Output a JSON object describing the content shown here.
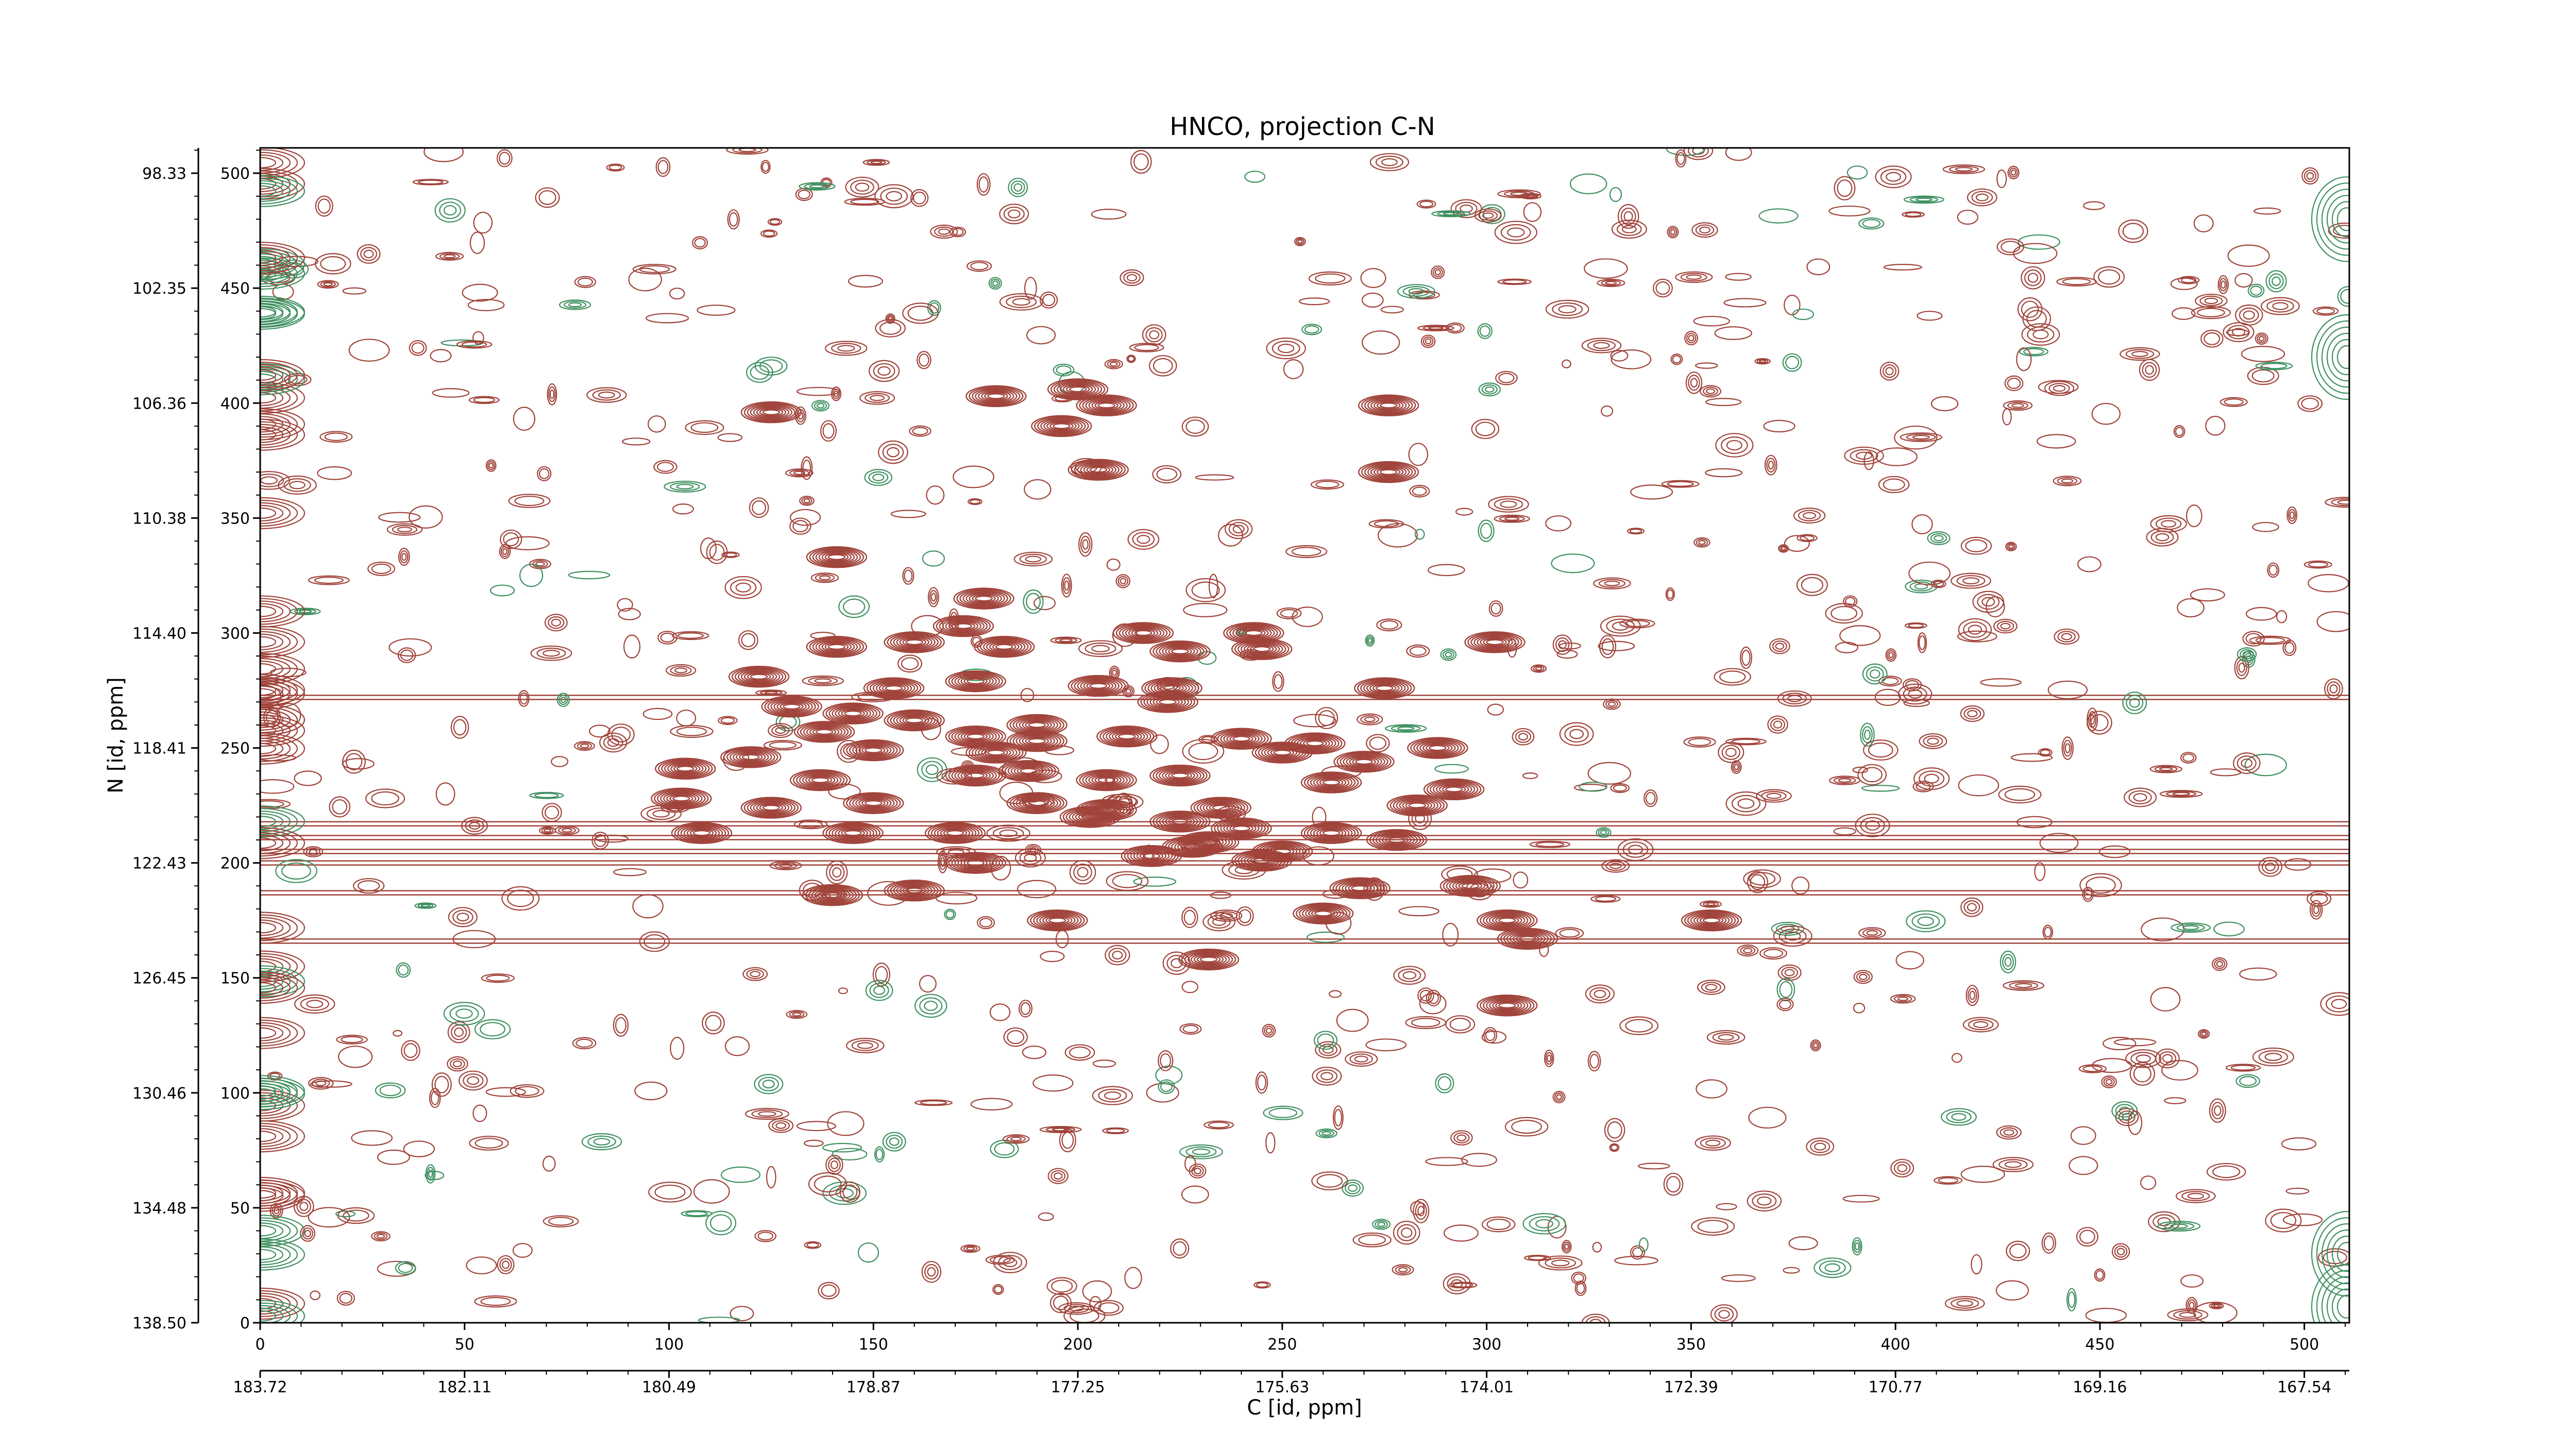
{
  "chart_data": {
    "type": "contour",
    "title": "HNCO, projection C-N",
    "xlabel": "C [id, ppm]",
    "ylabel": "N [id, ppm]",
    "xlim": [
      0,
      511
    ],
    "ylim": [
      0,
      511
    ],
    "x_index_ticks": [
      "0",
      "50",
      "100",
      "150",
      "200",
      "250",
      "300",
      "350",
      "400",
      "450",
      "500"
    ],
    "x_index_tick_values": [
      0,
      50,
      100,
      150,
      200,
      250,
      300,
      350,
      400,
      450,
      500
    ],
    "x_ppm_ticks": [
      "183.72",
      "182.11",
      "180.49",
      "178.87",
      "177.25",
      "175.63",
      "174.01",
      "172.39",
      "170.77",
      "169.16",
      "167.54"
    ],
    "x_ppm_tick_values": [
      0,
      50,
      100,
      150,
      200,
      250,
      300,
      350,
      400,
      450,
      500
    ],
    "y_index_ticks": [
      "0",
      "50",
      "100",
      "150",
      "200",
      "250",
      "300",
      "350",
      "400",
      "450",
      "500"
    ],
    "y_index_tick_values": [
      0,
      50,
      100,
      150,
      200,
      250,
      300,
      350,
      400,
      450,
      500
    ],
    "y_ppm_ticks": [
      "138.50",
      "134.48",
      "130.46",
      "126.45",
      "122.43",
      "118.41",
      "114.40",
      "110.38",
      "106.36",
      "102.35",
      "98.33"
    ],
    "y_ppm_tick_values": [
      0,
      50,
      100,
      150,
      200,
      250,
      300,
      350,
      400,
      450,
      500
    ],
    "colors": {
      "positive": "#a0433a",
      "negative": "#3f9060",
      "axis": "#000000"
    },
    "grid": false,
    "legend": "none",
    "horizontal_ridges": [
      {
        "y": 272,
        "x_range": [
          0,
          511
        ]
      },
      {
        "y": 217,
        "x_range": [
          0,
          511
        ]
      },
      {
        "y": 211,
        "x_range": [
          0,
          511
        ]
      },
      {
        "y": 205,
        "x_range": [
          0,
          511
        ]
      },
      {
        "y": 200,
        "x_range": [
          0,
          511
        ]
      },
      {
        "y": 187,
        "x_range": [
          0,
          511
        ]
      },
      {
        "y": 166,
        "x_range": [
          0,
          511
        ]
      }
    ],
    "peaks": [
      {
        "x": 125,
        "y": 396
      },
      {
        "x": 180,
        "y": 403
      },
      {
        "x": 200,
        "y": 406
      },
      {
        "x": 207,
        "y": 399
      },
      {
        "x": 196,
        "y": 390
      },
      {
        "x": 205,
        "y": 371
      },
      {
        "x": 276,
        "y": 399
      },
      {
        "x": 276,
        "y": 370
      },
      {
        "x": 141,
        "y": 333
      },
      {
        "x": 177,
        "y": 315
      },
      {
        "x": 172,
        "y": 303
      },
      {
        "x": 182,
        "y": 294
      },
      {
        "x": 141,
        "y": 294
      },
      {
        "x": 160,
        "y": 296
      },
      {
        "x": 216,
        "y": 300
      },
      {
        "x": 225,
        "y": 292
      },
      {
        "x": 243,
        "y": 300
      },
      {
        "x": 245,
        "y": 293
      },
      {
        "x": 302,
        "y": 296
      },
      {
        "x": 122,
        "y": 281
      },
      {
        "x": 175,
        "y": 279
      },
      {
        "x": 155,
        "y": 276
      },
      {
        "x": 205,
        "y": 277
      },
      {
        "x": 223,
        "y": 276
      },
      {
        "x": 275,
        "y": 276
      },
      {
        "x": 222,
        "y": 270
      },
      {
        "x": 130,
        "y": 268
      },
      {
        "x": 145,
        "y": 265
      },
      {
        "x": 160,
        "y": 262
      },
      {
        "x": 190,
        "y": 260
      },
      {
        "x": 138,
        "y": 257
      },
      {
        "x": 175,
        "y": 255
      },
      {
        "x": 190,
        "y": 253
      },
      {
        "x": 212,
        "y": 255
      },
      {
        "x": 240,
        "y": 254
      },
      {
        "x": 150,
        "y": 249
      },
      {
        "x": 120,
        "y": 246
      },
      {
        "x": 104,
        "y": 241
      },
      {
        "x": 180,
        "y": 248
      },
      {
        "x": 250,
        "y": 248
      },
      {
        "x": 258,
        "y": 252
      },
      {
        "x": 270,
        "y": 244
      },
      {
        "x": 288,
        "y": 250
      },
      {
        "x": 137,
        "y": 236
      },
      {
        "x": 175,
        "y": 238
      },
      {
        "x": 188,
        "y": 240
      },
      {
        "x": 225,
        "y": 238
      },
      {
        "x": 262,
        "y": 235
      },
      {
        "x": 207,
        "y": 236
      },
      {
        "x": 292,
        "y": 232
      },
      {
        "x": 103,
        "y": 228
      },
      {
        "x": 150,
        "y": 226
      },
      {
        "x": 190,
        "y": 226
      },
      {
        "x": 125,
        "y": 224
      },
      {
        "x": 207,
        "y": 223
      },
      {
        "x": 235,
        "y": 224
      },
      {
        "x": 283,
        "y": 225
      },
      {
        "x": 203,
        "y": 220
      },
      {
        "x": 225,
        "y": 218
      },
      {
        "x": 108,
        "y": 213
      },
      {
        "x": 145,
        "y": 213
      },
      {
        "x": 170,
        "y": 213
      },
      {
        "x": 240,
        "y": 215
      },
      {
        "x": 232,
        "y": 209
      },
      {
        "x": 228,
        "y": 207
      },
      {
        "x": 278,
        "y": 210
      },
      {
        "x": 250,
        "y": 205
      },
      {
        "x": 262,
        "y": 213
      },
      {
        "x": 175,
        "y": 200
      },
      {
        "x": 218,
        "y": 203
      },
      {
        "x": 245,
        "y": 201
      },
      {
        "x": 269,
        "y": 189
      },
      {
        "x": 296,
        "y": 190
      },
      {
        "x": 140,
        "y": 186
      },
      {
        "x": 160,
        "y": 188
      },
      {
        "x": 260,
        "y": 178
      },
      {
        "x": 195,
        "y": 175
      },
      {
        "x": 310,
        "y": 167
      },
      {
        "x": 355,
        "y": 175
      },
      {
        "x": 232,
        "y": 158
      },
      {
        "x": 305,
        "y": 138
      },
      {
        "x": 305,
        "y": 175
      }
    ]
  }
}
